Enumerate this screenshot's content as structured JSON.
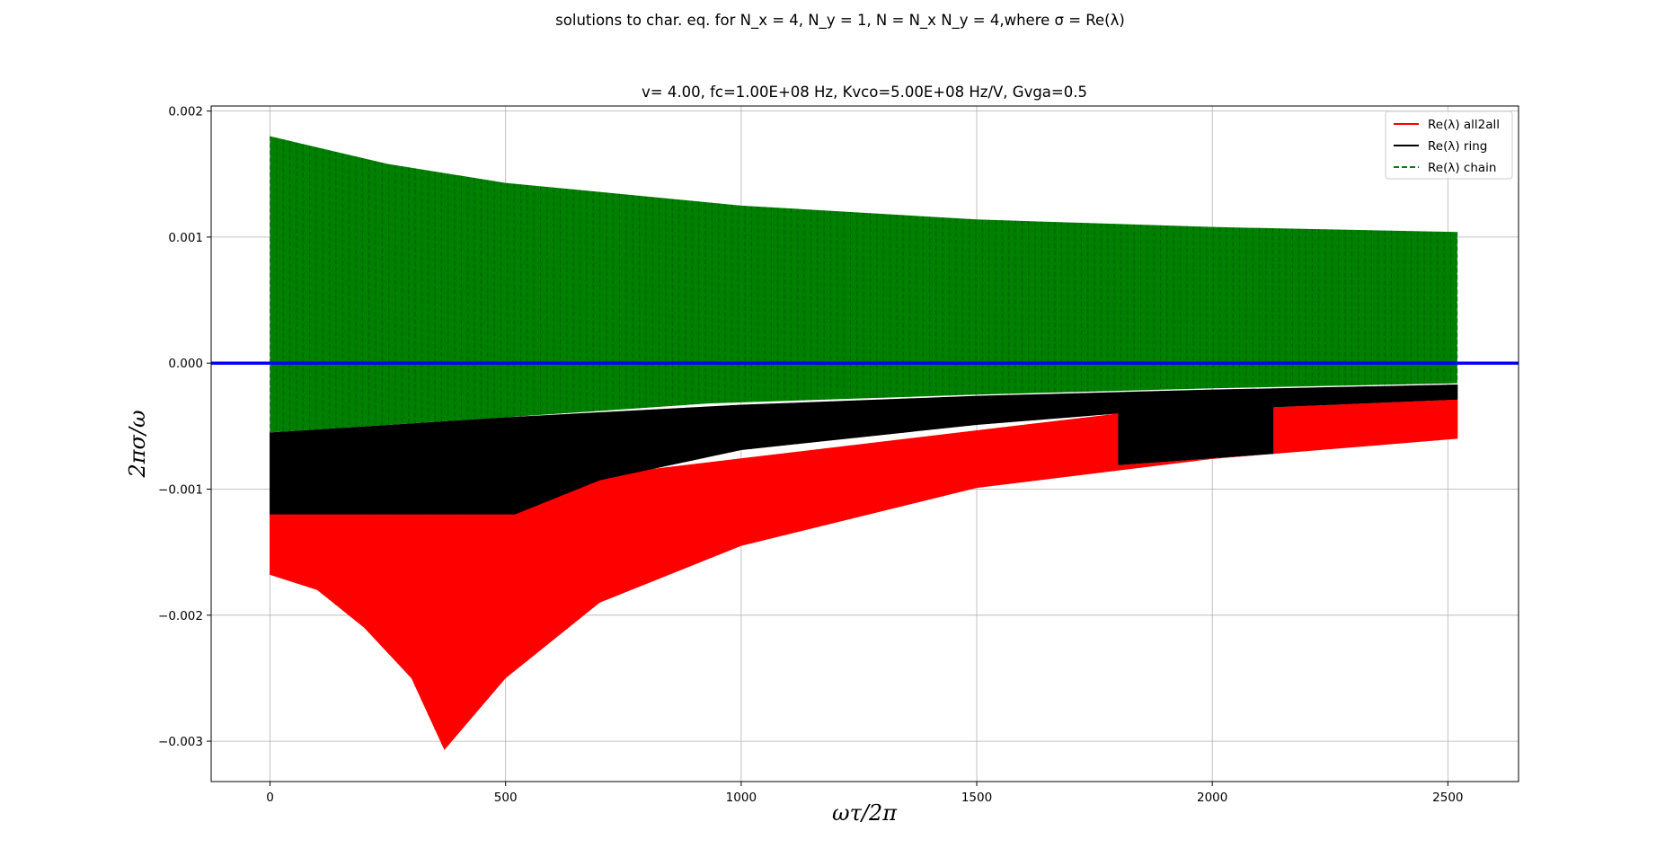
{
  "chart_data": {
    "type": "line",
    "suptitle": "solutions to char. eq. for N_x = 4, N_y = 1, N = N_x N_y = 4,where σ = Re(λ)",
    "title": "v= 4.00, fc=1.00E+08 Hz, Kvco=5.00E+08 Hz/V, Gvga=0.5",
    "xlabel": "ωτ/2π",
    "ylabel": "2πσ/ω",
    "xlim": [
      -125,
      2650
    ],
    "ylim": [
      -0.00332,
      0.00204
    ],
    "xticks": [
      0,
      500,
      1000,
      1500,
      2000,
      2500
    ],
    "xtick_labels": [
      "0",
      "500",
      "1000",
      "1500",
      "2000",
      "2500"
    ],
    "yticks": [
      -0.003,
      -0.002,
      -0.001,
      0.0,
      0.001,
      0.002
    ],
    "ytick_labels": [
      "−0.003",
      "−0.002",
      "−0.001",
      "0.000",
      "0.001",
      "0.002"
    ],
    "grid": true,
    "legend_position": "top-right",
    "zero_line_color": "#0000ff",
    "series": [
      {
        "name": "Re(λ) all2all",
        "color": "#ff0000",
        "linestyle": "solid",
        "x_range": [
          0,
          2520
        ],
        "upper_envelope": [
          [
            0,
            -0.0012
          ],
          [
            1800,
            -0.0004
          ],
          [
            1800,
            -0.00081
          ],
          [
            2130,
            -0.00072
          ],
          [
            2130,
            -0.00035
          ],
          [
            2520,
            -0.00029
          ]
        ],
        "lower_envelope": [
          [
            0,
            -0.00168
          ],
          [
            100,
            -0.0018
          ],
          [
            200,
            -0.0021
          ],
          [
            300,
            -0.0025
          ],
          [
            370,
            -0.00307
          ],
          [
            500,
            -0.0025
          ],
          [
            700,
            -0.0019
          ],
          [
            1000,
            -0.00145
          ],
          [
            1500,
            -0.00099
          ],
          [
            2000,
            -0.00076
          ],
          [
            2520,
            -0.0006
          ]
        ]
      },
      {
        "name": "Re(λ) ring",
        "color": "#000000",
        "linestyle": "solid",
        "x_range": [
          0,
          2520
        ],
        "upper_envelope": [
          [
            0,
            -0.00055
          ],
          [
            500,
            -0.00043
          ],
          [
            1000,
            -0.00033
          ],
          [
            1500,
            -0.00026
          ],
          [
            2000,
            -0.00021
          ],
          [
            2520,
            -0.00017
          ]
        ],
        "lower_envelope": [
          [
            0,
            -0.0012
          ],
          [
            520,
            -0.0012
          ],
          [
            700,
            -0.00093
          ],
          [
            1000,
            -0.00069
          ],
          [
            1500,
            -0.00049
          ],
          [
            1800,
            -0.0004
          ],
          [
            1800,
            -0.00081
          ],
          [
            2130,
            -0.00072
          ],
          [
            2130,
            -0.00035
          ],
          [
            2520,
            -0.00029
          ]
        ]
      },
      {
        "name": "Re(λ) chain",
        "color": "#008000",
        "linestyle": "dashed",
        "x_range": [
          0,
          2520
        ],
        "upper_envelope": [
          [
            0,
            0.0018
          ],
          [
            250,
            0.00158
          ],
          [
            500,
            0.00143
          ],
          [
            1000,
            0.00125
          ],
          [
            1500,
            0.00114
          ],
          [
            2000,
            0.00108
          ],
          [
            2520,
            0.00104
          ]
        ],
        "lower_envelope": [
          [
            0,
            -0.00055
          ],
          [
            500,
            -0.00043
          ],
          [
            930,
            -0.00032
          ],
          [
            1500,
            -0.00025
          ],
          [
            2000,
            -0.0002
          ],
          [
            2520,
            -0.00016
          ]
        ]
      }
    ]
  }
}
